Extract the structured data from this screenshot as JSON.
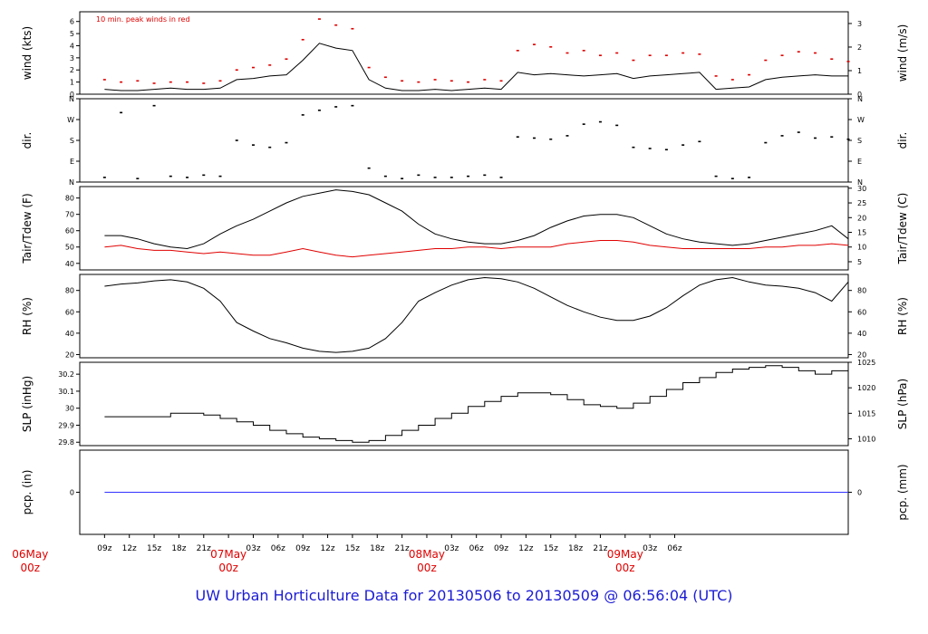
{
  "footer": {
    "title": "UW Urban Horticulture Data for 20130506  to  20130509 @ 06:56:04  (UTC)",
    "color": "#1c1cd4"
  },
  "colors": {
    "line": "#000000",
    "peak": "#e00000",
    "dewpoint": "#e00000",
    "precip": "#3232ff",
    "date_label": "#e00000",
    "frame": "#000000"
  },
  "chart_data": [
    {
      "id": "wind",
      "type": "line",
      "ylabel": "wind (kts)",
      "ylabel_right": "wind (m/s)",
      "annotation": "10 min. peak winds in red",
      "yticks": [
        0,
        1,
        2,
        3,
        4,
        5,
        6
      ],
      "ylim": [
        0,
        6.8
      ],
      "right_ticks": [
        {
          "value": 0,
          "label": "0"
        },
        {
          "value": 1.944,
          "label": "1"
        },
        {
          "value": 3.888,
          "label": "2"
        },
        {
          "value": 5.832,
          "label": "3"
        }
      ],
      "series": [
        {
          "role": "speed",
          "style": "line",
          "x": [
            0,
            2,
            4,
            6,
            8,
            10,
            12,
            14,
            16,
            18,
            20,
            22,
            24,
            26,
            28,
            30,
            32,
            34,
            36,
            38,
            40,
            42,
            44,
            46,
            48,
            50,
            52,
            54,
            56,
            58,
            60,
            62,
            64,
            66,
            68,
            70,
            72,
            74,
            76,
            78,
            80,
            82,
            84,
            86,
            88,
            90
          ],
          "values": [
            0.4,
            0.3,
            0.3,
            0.4,
            0.5,
            0.4,
            0.4,
            0.5,
            1.2,
            1.3,
            1.5,
            1.6,
            2.8,
            4.2,
            3.8,
            3.6,
            1.2,
            0.5,
            0.3,
            0.3,
            0.4,
            0.3,
            0.4,
            0.5,
            0.4,
            1.8,
            1.6,
            1.7,
            1.6,
            1.5,
            1.6,
            1.7,
            1.3,
            1.5,
            1.6,
            1.7,
            1.8,
            0.4,
            0.5,
            0.6,
            1.2,
            1.4,
            1.5,
            1.6,
            1.5,
            1.5
          ]
        },
        {
          "role": "peak",
          "style": "points",
          "x": [
            0,
            2,
            4,
            6,
            8,
            10,
            12,
            14,
            16,
            18,
            20,
            22,
            24,
            26,
            28,
            30,
            32,
            34,
            36,
            38,
            40,
            42,
            44,
            46,
            48,
            50,
            52,
            54,
            56,
            58,
            60,
            62,
            64,
            66,
            68,
            70,
            72,
            74,
            76,
            78,
            80,
            82,
            84,
            86,
            88,
            90
          ],
          "values": [
            1.2,
            1.0,
            1.1,
            0.9,
            1.0,
            1.0,
            0.9,
            1.1,
            2.0,
            2.2,
            2.4,
            2.9,
            4.5,
            6.2,
            5.7,
            5.4,
            2.2,
            1.4,
            1.1,
            1.0,
            1.2,
            1.1,
            1.0,
            1.2,
            1.1,
            3.6,
            4.1,
            3.9,
            3.4,
            3.6,
            3.2,
            3.4,
            2.8,
            3.2,
            3.2,
            3.4,
            3.3,
            1.5,
            1.2,
            1.6,
            2.8,
            3.2,
            3.5,
            3.4,
            2.9,
            2.7
          ]
        }
      ]
    },
    {
      "id": "direction",
      "type": "scatter",
      "ylabel": "dir.",
      "ylabel_right": "dir.",
      "yticks": [
        0,
        90,
        180,
        270,
        360
      ],
      "ytick_labels": [
        "N",
        "E",
        "S",
        "W",
        "N"
      ],
      "ylim": [
        0,
        360
      ],
      "series": [
        {
          "role": "direction",
          "style": "points",
          "x": [
            0,
            2,
            4,
            6,
            8,
            10,
            12,
            14,
            16,
            18,
            20,
            22,
            24,
            26,
            28,
            30,
            32,
            34,
            36,
            38,
            40,
            42,
            44,
            46,
            48,
            50,
            52,
            54,
            56,
            58,
            60,
            62,
            64,
            66,
            68,
            70,
            72,
            74,
            76,
            78,
            80,
            82,
            84,
            86,
            88,
            90
          ],
          "values": [
            20,
            300,
            15,
            330,
            25,
            20,
            30,
            25,
            180,
            160,
            150,
            170,
            290,
            310,
            325,
            330,
            60,
            25,
            15,
            30,
            20,
            20,
            25,
            30,
            20,
            195,
            190,
            185,
            200,
            250,
            260,
            245,
            150,
            145,
            140,
            160,
            175,
            25,
            15,
            20,
            170,
            200,
            215,
            190,
            195,
            185
          ]
        }
      ]
    },
    {
      "id": "temperature",
      "type": "line",
      "ylabel": "Tair/Tdew (F)",
      "ylabel_right": "Tair/Tdew (C)",
      "yticks": [
        40,
        50,
        60,
        70,
        80
      ],
      "ylim": [
        36,
        87
      ],
      "right_ticks": [
        {
          "value": 41,
          "label": "5"
        },
        {
          "value": 50,
          "label": "10"
        },
        {
          "value": 59,
          "label": "15"
        },
        {
          "value": 68,
          "label": "20"
        },
        {
          "value": 77,
          "label": "25"
        },
        {
          "value": 86,
          "label": "30"
        }
      ],
      "series": [
        {
          "role": "air_temperature",
          "style": "line",
          "x": [
            0,
            2,
            4,
            6,
            8,
            10,
            12,
            14,
            16,
            18,
            20,
            22,
            24,
            26,
            28,
            30,
            32,
            34,
            36,
            38,
            40,
            42,
            44,
            46,
            48,
            50,
            52,
            54,
            56,
            58,
            60,
            62,
            64,
            66,
            68,
            70,
            72,
            74,
            76,
            78,
            80,
            82,
            84,
            86,
            88,
            90
          ],
          "values": [
            57,
            57,
            55,
            52,
            50,
            49,
            52,
            58,
            63,
            67,
            72,
            77,
            81,
            83,
            85,
            84,
            82,
            77,
            72,
            64,
            58,
            55,
            53,
            52,
            52,
            54,
            57,
            62,
            66,
            69,
            70,
            70,
            68,
            63,
            58,
            55,
            53,
            52,
            51,
            52,
            54,
            56,
            58,
            60,
            63,
            55
          ]
        },
        {
          "role": "dew_point",
          "style": "line",
          "x": [
            0,
            2,
            4,
            6,
            8,
            10,
            12,
            14,
            16,
            18,
            20,
            22,
            24,
            26,
            28,
            30,
            32,
            34,
            36,
            38,
            40,
            42,
            44,
            46,
            48,
            50,
            52,
            54,
            56,
            58,
            60,
            62,
            64,
            66,
            68,
            70,
            72,
            74,
            76,
            78,
            80,
            82,
            84,
            86,
            88,
            90
          ],
          "values": [
            50,
            51,
            49,
            48,
            48,
            47,
            46,
            47,
            46,
            45,
            45,
            47,
            49,
            47,
            45,
            44,
            45,
            46,
            47,
            48,
            49,
            49,
            50,
            50,
            49,
            50,
            50,
            50,
            52,
            53,
            54,
            54,
            53,
            51,
            50,
            49,
            49,
            49,
            49,
            49,
            50,
            50,
            51,
            51,
            52,
            51
          ]
        }
      ]
    },
    {
      "id": "rh",
      "type": "line",
      "ylabel": "RH (%)",
      "ylabel_right": "RH (%)",
      "yticks": [
        20,
        40,
        60,
        80
      ],
      "ylim": [
        17,
        95
      ],
      "right_ticks": [
        {
          "value": 20,
          "label": "20"
        },
        {
          "value": 40,
          "label": "40"
        },
        {
          "value": 60,
          "label": "60"
        },
        {
          "value": 80,
          "label": "80"
        }
      ],
      "series": [
        {
          "role": "relative_humidity",
          "style": "line",
          "x": [
            0,
            2,
            4,
            6,
            8,
            10,
            12,
            14,
            16,
            18,
            20,
            22,
            24,
            26,
            28,
            30,
            32,
            34,
            36,
            38,
            40,
            42,
            44,
            46,
            48,
            50,
            52,
            54,
            56,
            58,
            60,
            62,
            64,
            66,
            68,
            70,
            72,
            74,
            76,
            78,
            80,
            82,
            84,
            86,
            88,
            90
          ],
          "values": [
            84,
            86,
            87,
            89,
            90,
            88,
            82,
            70,
            50,
            42,
            35,
            31,
            26,
            23,
            22,
            23,
            26,
            35,
            50,
            70,
            78,
            85,
            90,
            92,
            91,
            88,
            82,
            74,
            66,
            60,
            55,
            52,
            52,
            56,
            64,
            75,
            85,
            90,
            92,
            88,
            85,
            84,
            82,
            78,
            70,
            88
          ]
        }
      ]
    },
    {
      "id": "pressure",
      "type": "line",
      "ylabel": "SLP (inHg)",
      "ylabel_right": "SLP (hPa)",
      "yticks": [
        29.8,
        29.9,
        30.0,
        30.1,
        30.2
      ],
      "ylim": [
        29.78,
        30.27
      ],
      "right_ticks": [
        {
          "value": 29.82,
          "label": "1010"
        },
        {
          "value": 29.97,
          "label": "1015"
        },
        {
          "value": 30.12,
          "label": "1020"
        },
        {
          "value": 30.27,
          "label": "1025"
        }
      ],
      "series": [
        {
          "role": "sea_level_pressure",
          "style": "step",
          "x": [
            0,
            2,
            4,
            6,
            8,
            10,
            12,
            14,
            16,
            18,
            20,
            22,
            24,
            26,
            28,
            30,
            32,
            34,
            36,
            38,
            40,
            42,
            44,
            46,
            48,
            50,
            52,
            54,
            56,
            58,
            60,
            62,
            64,
            66,
            68,
            70,
            72,
            74,
            76,
            78,
            80,
            82,
            84,
            86,
            88,
            90
          ],
          "values": [
            29.95,
            29.95,
            29.95,
            29.95,
            29.97,
            29.97,
            29.96,
            29.94,
            29.92,
            29.9,
            29.87,
            29.85,
            29.83,
            29.82,
            29.81,
            29.8,
            29.81,
            29.84,
            29.87,
            29.9,
            29.94,
            29.97,
            30.01,
            30.04,
            30.07,
            30.09,
            30.09,
            30.08,
            30.05,
            30.02,
            30.01,
            30.0,
            30.03,
            30.07,
            30.11,
            30.15,
            30.18,
            30.21,
            30.23,
            30.24,
            30.25,
            30.24,
            30.22,
            30.2,
            30.22,
            30.25
          ]
        }
      ]
    },
    {
      "id": "precip",
      "type": "line",
      "ylabel": "pcp. (in)",
      "ylabel_right": "pcp. (mm)",
      "yticks": [
        0
      ],
      "ylim": [
        -1,
        1
      ],
      "right_ticks": [
        {
          "value": 0,
          "label": "0"
        }
      ],
      "series": [
        {
          "role": "precipitation",
          "style": "line",
          "x": [
            0,
            90
          ],
          "values": [
            0,
            0
          ]
        }
      ]
    }
  ],
  "time_axis": {
    "xlim": [
      -3,
      90
    ],
    "hour_ticks": [
      {
        "x": 0,
        "label": "09z"
      },
      {
        "x": 3,
        "label": "12z"
      },
      {
        "x": 6,
        "label": "15z"
      },
      {
        "x": 9,
        "label": "18z"
      },
      {
        "x": 12,
        "label": "21z"
      },
      {
        "x": 18,
        "label": "03z"
      },
      {
        "x": 21,
        "label": "06z"
      },
      {
        "x": 24,
        "label": "09z"
      },
      {
        "x": 27,
        "label": "12z"
      },
      {
        "x": 30,
        "label": "15z"
      },
      {
        "x": 33,
        "label": "18z"
      },
      {
        "x": 36,
        "label": "21z"
      },
      {
        "x": 42,
        "label": "03z"
      },
      {
        "x": 45,
        "label": "06z"
      },
      {
        "x": 48,
        "label": "09z"
      },
      {
        "x": 51,
        "label": "12z"
      },
      {
        "x": 54,
        "label": "15z"
      },
      {
        "x": 57,
        "label": "18z"
      },
      {
        "x": 60,
        "label": "21z"
      },
      {
        "x": 66,
        "label": "03z"
      },
      {
        "x": 69,
        "label": "06z"
      }
    ],
    "date_ticks": [
      {
        "x": -9,
        "label": "06May",
        "sublabel": "00z"
      },
      {
        "x": 15,
        "label": "07May",
        "sublabel": "00z"
      },
      {
        "x": 39,
        "label": "08May",
        "sublabel": "00z"
      },
      {
        "x": 63,
        "label": "09May",
        "sublabel": "00z"
      }
    ]
  }
}
